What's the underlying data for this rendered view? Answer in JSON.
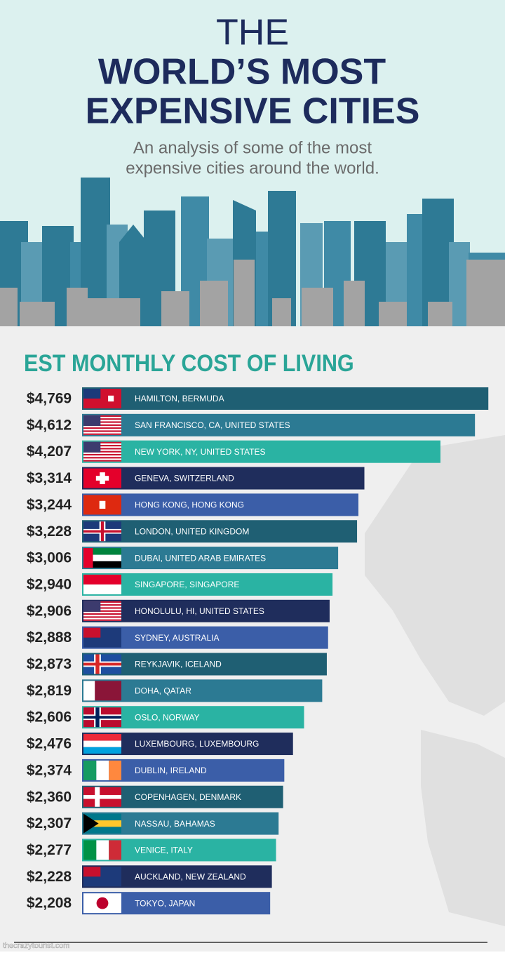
{
  "chart_data": {
    "type": "bar",
    "orientation": "horizontal",
    "title": [
      "THE",
      "WORLD’S MOST",
      "EXPENSIVE CITIES"
    ],
    "subtitle": [
      "An analysis of some of the most",
      "expensive cities around the world."
    ],
    "heading": "EST MONTHLY COST OF LIVING",
    "categories": [
      "HAMILTON, BERMUDA",
      "SAN FRANCISCO, CA, UNITED STATES",
      "NEW YORK, NY, UNITED STATES",
      "GENEVA, SWITZERLAND",
      "HONG KONG, HONG KONG",
      "LONDON, UNITED KINGDOM",
      "DUBAI, UNITED ARAB EMIRATES",
      "SINGAPORE, SINGAPORE",
      "HONOLULU, HI, UNITED STATES",
      "SYDNEY, AUSTRALIA",
      "REYKJAVIK, ICELAND",
      "DOHA, QATAR",
      "OSLO, NORWAY",
      "LUXEMBOURG, LUXEMBOURG",
      "DUBLIN, IRELAND",
      "COPENHAGEN, DENMARK",
      "NASSAU, BAHAMAS",
      "VENICE, ITALY",
      "AUCKLAND, NEW ZEALAND",
      "TOKYO, JAPAN"
    ],
    "values": [
      4769,
      4612,
      4207,
      3314,
      3244,
      3228,
      3006,
      2940,
      2906,
      2888,
      2873,
      2819,
      2606,
      2476,
      2374,
      2360,
      2307,
      2277,
      2228,
      2208
    ],
    "value_labels": [
      "$4,769",
      "$4,612",
      "$4,207",
      "$3,314",
      "$3,244",
      "$3,228",
      "$3,006",
      "$2,940",
      "$2,906",
      "$2,888",
      "$2,873",
      "$2,819",
      "$2,606",
      "$2,476",
      "$2,374",
      "$2,360",
      "$2,307",
      "$2,277",
      "$2,228",
      "$2,208"
    ],
    "colors": [
      "#1f5f73",
      "#2c7a93",
      "#2ab3a3",
      "#1f2d5c",
      "#3b5ea8",
      "#1f5f73",
      "#2c7a93",
      "#2ab3a3",
      "#1f2d5c",
      "#3b5ea8",
      "#1f5f73",
      "#2c7a93",
      "#2ab3a3",
      "#1f2d5c",
      "#3b5ea8",
      "#1f5f73",
      "#2c7a93",
      "#2ab3a3",
      "#1f2d5c",
      "#3b5ea8"
    ],
    "xlim": [
      0,
      4800
    ],
    "source": "thecrazytourist.com"
  }
}
